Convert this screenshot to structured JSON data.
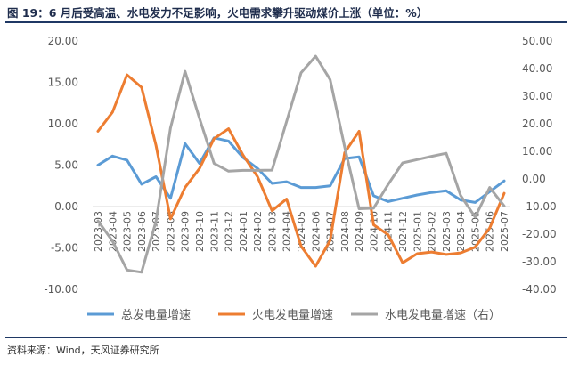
{
  "title": "图 19：6 月后受高温、水电发力不足影响，火电需求攀升驱动煤价上涨（单位：%）",
  "source": "资料来源：Wind，天风证券研究所",
  "colors": {
    "total": "#5b9bd5",
    "thermal": "#ed7d31",
    "hydro": "#a5a5a5"
  },
  "chart_data": {
    "type": "line",
    "x": [
      "2023-03",
      "2023-04",
      "2023-05",
      "2023-06",
      "2023-07",
      "2023-08",
      "2023-09",
      "2023-10",
      "2023-11",
      "2023-12",
      "2024-01",
      "2024-02",
      "2024-03",
      "2024-04",
      "2024-05",
      "2024-06",
      "2024-07",
      "2024-08",
      "2024-09",
      "2024-10",
      "2024-11",
      "2024-12",
      "2025-01",
      "2025-02",
      "2025-03",
      "2025-04",
      "2025-05",
      "2025-06",
      "2025-07"
    ],
    "xlabels": [
      "2023-03",
      "2023-04",
      "2023-05",
      "2023-06",
      "2023-07",
      "2023-08",
      "2023-09",
      "2023-10",
      "2023-11",
      "2023-12",
      "2024-01",
      "2024-02",
      "2024-03",
      "2024-04",
      "2024-05",
      "2024-06",
      "2024-07",
      "2024-08",
      "2024-09",
      "2024-10",
      "2024-11",
      "2024-12",
      "2025-01",
      "2025-02",
      "2025-03",
      "2025-04",
      "2025-05",
      "2025-06",
      "2025-07"
    ],
    "left_axis": {
      "ylim": [
        -10,
        20
      ],
      "ticks": [
        "20.00",
        "15.00",
        "10.00",
        "5.00",
        "0.00",
        "-5.00",
        "-10.00"
      ]
    },
    "right_axis": {
      "ylim": [
        -40,
        50
      ],
      "ticks": [
        "50.00",
        "40.00",
        "30.00",
        "20.00",
        "10.00",
        "0.00",
        "-10.00",
        "-20.00",
        "-30.00",
        "-40.00"
      ]
    },
    "series": [
      {
        "name": "总发电量增速",
        "axis": "left",
        "values": [
          5.0,
          6.1,
          5.6,
          2.7,
          3.6,
          1.0,
          7.6,
          5.2,
          8.3,
          7.9,
          5.9,
          4.6,
          2.8,
          3.0,
          2.3,
          2.3,
          2.5,
          5.8,
          6.0,
          1.3,
          0.6,
          1.0,
          1.4,
          1.7,
          1.9,
          0.8,
          0.5,
          1.8,
          3.1
        ]
      },
      {
        "name": "火电发电量增速",
        "axis": "left",
        "values": [
          9.1,
          11.4,
          15.9,
          14.4,
          7.4,
          -1.5,
          2.3,
          4.6,
          8.2,
          9.4,
          6.2,
          3.6,
          -0.5,
          0.9,
          -4.8,
          -7.2,
          -4.1,
          6.5,
          9.1,
          -2.2,
          -3.4,
          -6.8,
          -5.7,
          -5.5,
          -5.8,
          -5.6,
          -4.9,
          -2.6,
          1.6
        ]
      },
      {
        "name": "水电发电量增速（右）",
        "axis": "right",
        "values": [
          -15.2,
          -22.5,
          -33.0,
          -33.8,
          -15.4,
          18.5,
          39.0,
          21.9,
          5.6,
          2.8,
          3.1,
          3.1,
          3.2,
          20.8,
          38.5,
          44.5,
          36.0,
          11.6,
          -10.8,
          -10.6,
          -2.0,
          5.8,
          7.0,
          8.2,
          9.3,
          -6.0,
          -13.8,
          -3.1,
          -9.8
        ]
      }
    ],
    "legend": [
      "总发电量增速",
      "火电发电量增速",
      "水电发电量增速（右）"
    ],
    "legend_placement": "bottom",
    "grid": false
  }
}
